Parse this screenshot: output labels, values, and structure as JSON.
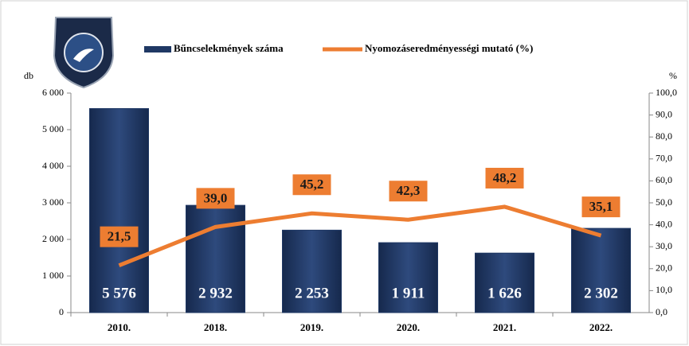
{
  "chart_data": {
    "type": "bar",
    "categories": [
      "2010.",
      "2018.",
      "2019.",
      "2020.",
      "2021.",
      "2022."
    ],
    "ylabel": "db",
    "y2label": "%",
    "series": [
      {
        "name": "Bűncselekmények száma",
        "color": "#1f3864",
        "values": [
          5576,
          2932,
          2253,
          1911,
          1626,
          2302
        ],
        "value_labels": [
          "5 576",
          "2 932",
          "2 253",
          "1 911",
          "1 626",
          "2 302"
        ]
      },
      {
        "name": "Nyomozáseredményességi mutató (%)",
        "type": "line",
        "axis": "y2",
        "color": "#ed7d31",
        "values": [
          21.5,
          39.0,
          45.2,
          42.3,
          48.2,
          35.1
        ],
        "value_labels": [
          "21,5",
          "39,0",
          "45,2",
          "42,3",
          "48,2",
          "35,1"
        ]
      }
    ],
    "ylim": [
      0,
      6000
    ],
    "yticks": [
      0,
      {
        "value": 1000,
        "label": "1 000"
      },
      {
        "value": 2000,
        "label": "2 000"
      },
      {
        "value": 3000,
        "label": "3 000"
      },
      {
        "value": 4000,
        "label": "4 000"
      },
      {
        "value": 5000,
        "label": "5 000"
      },
      {
        "value": 6000,
        "label": "6 000"
      }
    ],
    "y2lim": [
      0,
      100
    ],
    "y2ticks": [
      {
        "value": 0,
        "label": "0,0"
      },
      {
        "value": 10,
        "label": "10,0"
      },
      {
        "value": 20,
        "label": "20,0"
      },
      {
        "value": 30,
        "label": "30,0"
      },
      {
        "value": 40,
        "label": "40,0"
      },
      {
        "value": 50,
        "label": "50,0"
      },
      {
        "value": 60,
        "label": "60,0"
      },
      {
        "value": 70,
        "label": "70,0"
      },
      {
        "value": 80,
        "label": "80,0"
      },
      {
        "value": 90,
        "label": "90,0"
      },
      {
        "value": 100,
        "label": "100,0"
      }
    ],
    "legend": "top"
  }
}
